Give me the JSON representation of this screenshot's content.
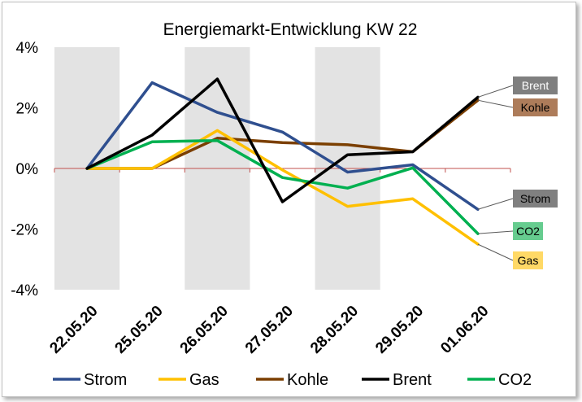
{
  "chart_data": {
    "type": "line",
    "title": "Energiemarkt-Entwicklung KW 22",
    "categories": [
      "22.05.20",
      "25.05.20",
      "26.05.20",
      "27.05.20",
      "28.05.20",
      "29.05.20",
      "01.06.20"
    ],
    "y_ticks": [
      "4%",
      "2%",
      "0%",
      "-2%",
      "-4%"
    ],
    "ylim": [
      -4,
      4
    ],
    "y_unit": "%",
    "shaded_categories": [
      0,
      2,
      4
    ],
    "legend_position": "bottom",
    "series": [
      {
        "name": "Strom",
        "color": "#2f4f8f",
        "values": [
          0,
          2.83,
          1.85,
          1.2,
          -0.12,
          0.12,
          -1.35
        ]
      },
      {
        "name": "Gas",
        "color": "#ffc000",
        "values": [
          0,
          0,
          1.25,
          -0.05,
          -1.25,
          -1.0,
          -2.5
        ]
      },
      {
        "name": "Kohle",
        "color": "#7b3f00",
        "values": [
          0,
          0,
          1.0,
          0.85,
          0.78,
          0.55,
          2.25
        ]
      },
      {
        "name": "Brent",
        "color": "#000000",
        "values": [
          0,
          1.1,
          2.95,
          -1.1,
          0.45,
          0.55,
          2.35
        ]
      },
      {
        "name": "CO2",
        "color": "#00b050",
        "values": [
          0,
          0.88,
          0.92,
          -0.3,
          -0.65,
          0.02,
          -2.15
        ]
      }
    ],
    "end_labels": [
      {
        "text": "Brent",
        "bg": "#7f7f7f",
        "fg": "#ffffff",
        "series": "Brent"
      },
      {
        "text": "Kohle",
        "bg": "#ad7c5a",
        "fg": "#000000",
        "series": "Kohle"
      },
      {
        "text": "Strom",
        "bg": "#808080",
        "fg": "#000000",
        "series": "Strom"
      },
      {
        "text": "CO2",
        "bg": "#66cc8f",
        "fg": "#000000",
        "series": "CO2"
      },
      {
        "text": "Gas",
        "bg": "#ffd966",
        "fg": "#000000",
        "series": "Gas"
      }
    ]
  }
}
